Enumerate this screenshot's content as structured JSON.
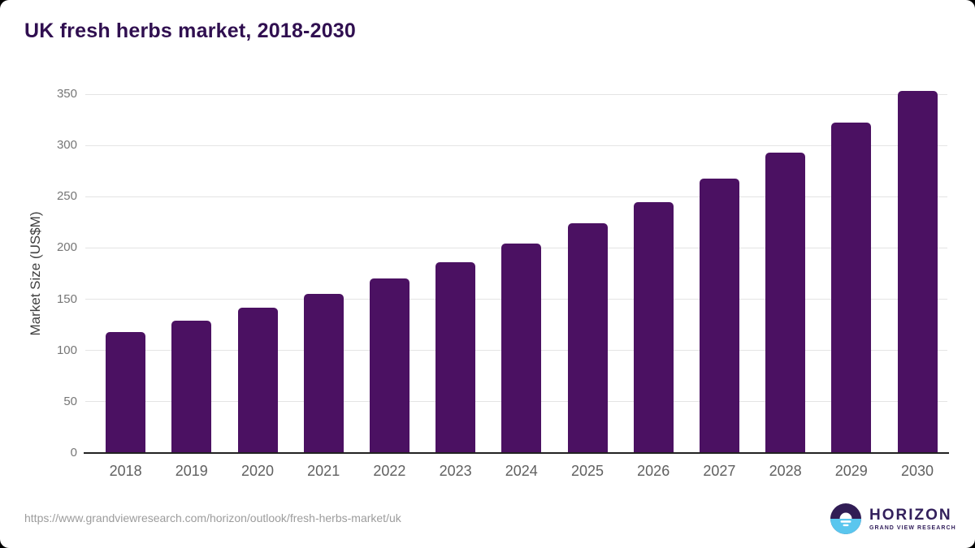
{
  "title": "UK fresh herbs market, 2018-2030",
  "source_url": "https://www.grandviewresearch.com/horizon/outlook/fresh-herbs-market/uk",
  "logo": {
    "name": "HORIZON",
    "subtitle": "GRAND VIEW RESEARCH"
  },
  "colors": {
    "title": "#300f50",
    "bar": "#4b1162",
    "grid": "#e4e4e4",
    "axis": "#222222",
    "tick_label": "#767676",
    "x_label": "#606060",
    "axis_title": "#3f3f3f",
    "source": "#9c9c9c",
    "logo_text": "#33205c",
    "logo_icon_purple": "#311d55",
    "logo_icon_blue": "#5ac6ee"
  },
  "chart_data": {
    "type": "bar",
    "title": "UK fresh herbs market, 2018-2030",
    "categories": [
      "2018",
      "2019",
      "2020",
      "2021",
      "2022",
      "2023",
      "2024",
      "2025",
      "2026",
      "2027",
      "2028",
      "2029",
      "2030"
    ],
    "values": [
      118,
      129,
      142,
      155,
      170,
      186,
      204,
      224,
      245,
      268,
      293,
      322,
      353
    ],
    "xlabel": "",
    "ylabel": "Market Size (US$M)",
    "ylim": [
      0,
      350
    ],
    "yticks": [
      0,
      50,
      100,
      150,
      200,
      250,
      300,
      350
    ],
    "grid": true,
    "legend": false,
    "bar_color": "#4b1162"
  }
}
